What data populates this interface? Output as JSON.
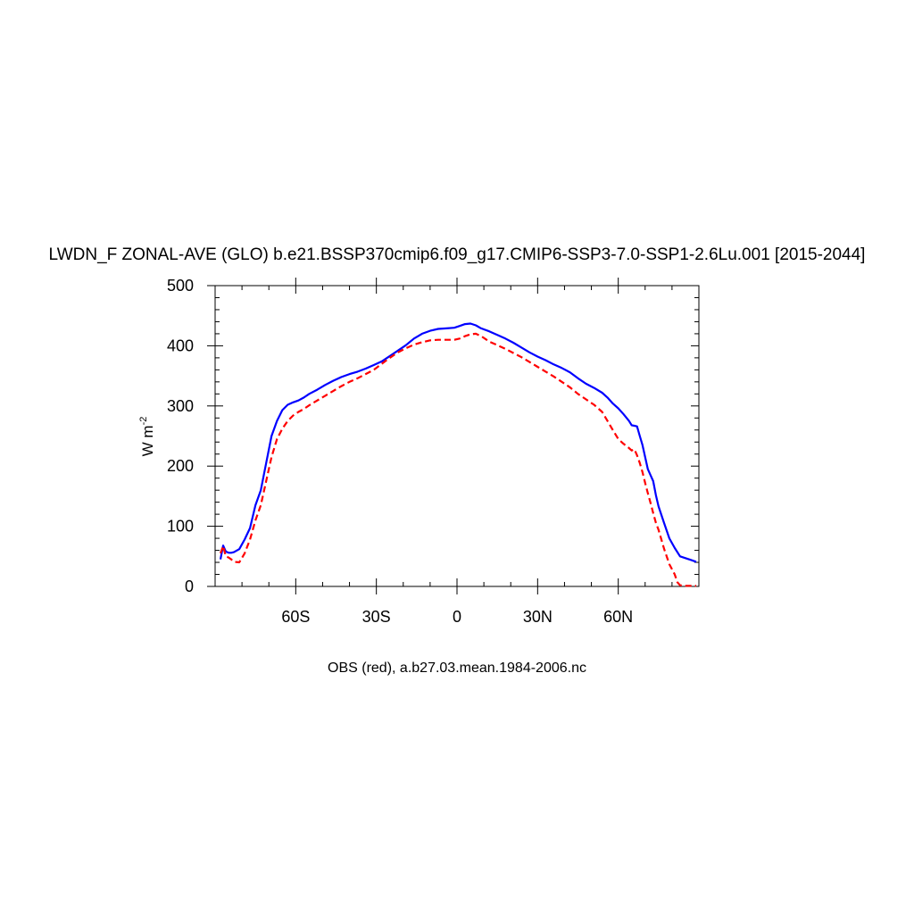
{
  "chart_data": {
    "type": "line",
    "title": "LWDN_F ZONAL-AVE (GLO) b.e21.BSSP370cmip6.f09_g17.CMIP6-SSP3-7.0-SSP1-2.6Lu.001 [2015-2044]",
    "ylabel": "W m",
    "ylabel_sup": "-2",
    "footer": "OBS (red), a.b27.03.mean.1984-2006.nc",
    "xlim": [
      -90,
      90
    ],
    "ylim": [
      0,
      500
    ],
    "yticks": [
      0,
      100,
      200,
      300,
      400,
      500
    ],
    "xticks": [
      -60,
      -30,
      0,
      30,
      60
    ],
    "xtick_labels": [
      "60S",
      "30S",
      "0",
      "30N",
      "60N"
    ],
    "grid": false,
    "series": [
      {
        "color": "#0000ff",
        "dash": "solid",
        "x": [
          -88,
          -87,
          -86,
          -85,
          -84,
          -83,
          -81,
          -79,
          -77,
          -75,
          -73,
          -71,
          -69,
          -67,
          -65,
          -63,
          -61,
          -59,
          -57,
          -55,
          -52,
          -49,
          -46,
          -43,
          -40,
          -37,
          -34,
          -31,
          -28,
          -25,
          -22,
          -19,
          -16,
          -13,
          -10,
          -7,
          -4,
          -1,
          1,
          3,
          5,
          7,
          9,
          12,
          15,
          18,
          21,
          24,
          27,
          30,
          33,
          36,
          39,
          42,
          45,
          48,
          51,
          54,
          56,
          58,
          60,
          62,
          64,
          65,
          66,
          67,
          68,
          69,
          70,
          71,
          72,
          73,
          74,
          75,
          77,
          79,
          81,
          83,
          85,
          87,
          89
        ],
        "values": [
          45,
          68,
          58,
          56,
          56,
          57,
          62,
          78,
          97,
          135,
          160,
          205,
          250,
          275,
          293,
          302,
          306,
          309,
          314,
          320,
          327,
          335,
          342,
          348,
          353,
          357,
          362,
          368,
          374,
          383,
          392,
          401,
          412,
          420,
          425,
          428,
          429,
          430,
          433,
          436,
          437,
          434,
          429,
          424,
          418,
          412,
          405,
          397,
          389,
          382,
          376,
          369,
          363,
          356,
          346,
          337,
          330,
          322,
          314,
          304,
          296,
          286,
          275,
          268,
          267,
          266,
          250,
          235,
          215,
          195,
          185,
          175,
          152,
          133,
          106,
          80,
          64,
          50,
          47,
          44,
          41
        ]
      },
      {
        "color": "#ff0000",
        "dash": "dashed",
        "x": [
          -88,
          -87,
          -86,
          -85,
          -84,
          -83,
          -81,
          -79,
          -77,
          -75,
          -73,
          -71,
          -69,
          -67,
          -65,
          -63,
          -61,
          -59,
          -57,
          -55,
          -52,
          -49,
          -46,
          -43,
          -40,
          -37,
          -34,
          -31,
          -28,
          -25,
          -22,
          -19,
          -16,
          -13,
          -10,
          -7,
          -4,
          -1,
          1,
          3,
          5,
          7,
          9,
          12,
          15,
          18,
          21,
          24,
          27,
          30,
          33,
          36,
          39,
          42,
          45,
          48,
          51,
          54,
          56,
          58,
          60,
          62,
          64,
          65,
          66,
          67,
          68,
          69,
          70,
          71,
          72,
          73,
          74,
          75,
          77,
          79,
          81,
          82,
          83,
          85,
          87,
          89
        ],
        "values": [
          55,
          67,
          50,
          48,
          45,
          41,
          40,
          55,
          78,
          110,
          135,
          175,
          215,
          245,
          262,
          275,
          284,
          290,
          295,
          301,
          309,
          317,
          325,
          333,
          340,
          346,
          353,
          360,
          370,
          380,
          389,
          396,
          402,
          406,
          409,
          410,
          410,
          410,
          412,
          416,
          419,
          420,
          416,
          407,
          401,
          395,
          388,
          381,
          373,
          365,
          357,
          349,
          340,
          331,
          320,
          311,
          302,
          290,
          275,
          260,
          245,
          237,
          230,
          226,
          228,
          218,
          205,
          190,
          172,
          155,
          139,
          122,
          106,
          94,
          63,
          37,
          20,
          7,
          2,
          1,
          1,
          1
        ]
      }
    ]
  }
}
